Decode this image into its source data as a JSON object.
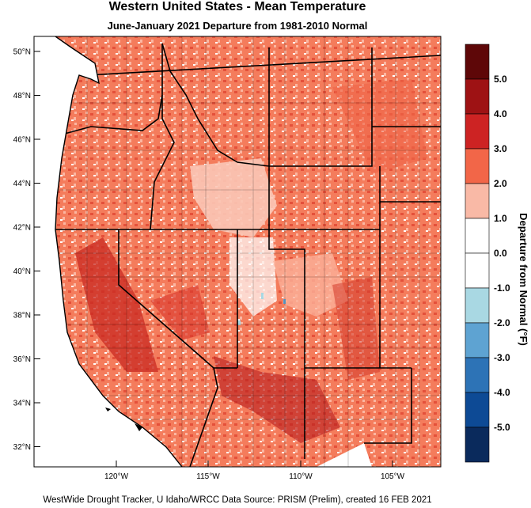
{
  "title": "Western United States - Mean Temperature",
  "subtitle": "June-January 2021  Departure from 1981-2010 Normal",
  "credit": "WestWide Drought Tracker, U Idaho/WRCC Data Source: PRISM (Prelim), created 16 FEB 2021",
  "lat_labels": [
    "50°N",
    "48°N",
    "46°N",
    "44°N",
    "42°N",
    "40°N",
    "38°N",
    "36°N",
    "34°N",
    "32°N"
  ],
  "lon_labels": [
    "120°W",
    "115°W",
    "110°W",
    "105°W"
  ],
  "colorbar": {
    "title": "Departure from Normal (°F)",
    "labels": [
      "5.0",
      "4.0",
      "3.0",
      "2.0",
      "1.0",
      "0.0",
      "-1.0",
      "-2.0",
      "-3.0",
      "-4.0",
      "-5.0"
    ],
    "colors": [
      "#5e0708",
      "#9e1214",
      "#cd2323",
      "#f26648",
      "#f9b9a6",
      "#ffffff",
      "#ffffff",
      "#a9d8e3",
      "#5ea3d2",
      "#2d73b6",
      "#0d4a95",
      "#0a2a5c"
    ]
  }
}
